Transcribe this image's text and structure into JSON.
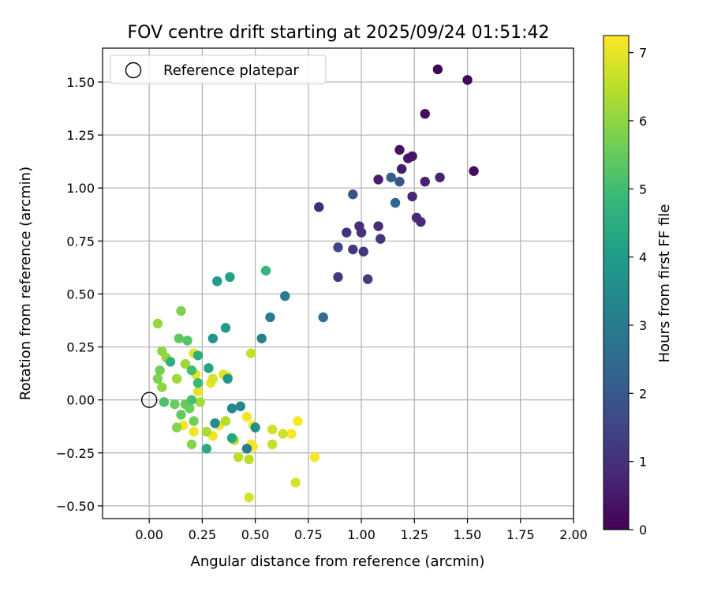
{
  "chart_data": {
    "type": "scatter",
    "title": "FOV centre drift starting at 2025/09/24 01:51:42",
    "xlabel": "Angular distance from reference (arcmin)",
    "ylabel": "Rotation from reference (arcmin)",
    "xlim": [
      -0.22,
      2.0
    ],
    "ylim": [
      -0.56,
      1.66
    ],
    "xticks": [
      0.0,
      0.25,
      0.5,
      0.75,
      1.0,
      1.25,
      1.5,
      1.75,
      2.0
    ],
    "xtick_labels": [
      "0.00",
      "0.25",
      "0.50",
      "0.75",
      "1.00",
      "1.25",
      "1.50",
      "1.75",
      "2.00"
    ],
    "yticks": [
      -0.5,
      -0.25,
      0.0,
      0.25,
      0.5,
      0.75,
      1.0,
      1.25,
      1.5
    ],
    "ytick_labels": [
      "−0.50",
      "−0.25",
      "0.00",
      "0.25",
      "0.50",
      "0.75",
      "1.00",
      "1.25",
      "1.50"
    ],
    "grid": true,
    "legend": {
      "position": "top-left",
      "entries": [
        {
          "label": "Reference platepar",
          "marker": "open-circle"
        }
      ]
    },
    "reference_point": {
      "x": 0.0,
      "y": 0.0
    },
    "colorbar": {
      "label": "Hours from first FF file",
      "colormap": "viridis",
      "range": [
        0,
        7.25
      ],
      "ticks": [
        0,
        1,
        2,
        3,
        4,
        5,
        6,
        7
      ],
      "tick_labels": [
        "0",
        "1",
        "2",
        "3",
        "4",
        "5",
        "6",
        "7"
      ]
    },
    "colormap_stops": [
      "#440154",
      "#482878",
      "#3e4989",
      "#31688e",
      "#26828e",
      "#1f9e89",
      "#35b779",
      "#6ece58",
      "#b5de2b",
      "#fde725"
    ],
    "points": [
      {
        "x": 1.36,
        "y": 1.56,
        "c": 0.05
      },
      {
        "x": 1.5,
        "y": 1.51,
        "c": 0.1
      },
      {
        "x": 1.53,
        "y": 1.08,
        "c": 0.15
      },
      {
        "x": 1.3,
        "y": 1.35,
        "c": 0.25
      },
      {
        "x": 1.18,
        "y": 1.18,
        "c": 0.35
      },
      {
        "x": 1.24,
        "y": 1.15,
        "c": 0.4
      },
      {
        "x": 1.22,
        "y": 1.14,
        "c": 0.45
      },
      {
        "x": 1.19,
        "y": 1.09,
        "c": 0.55
      },
      {
        "x": 1.08,
        "y": 1.04,
        "c": 0.6
      },
      {
        "x": 1.3,
        "y": 1.03,
        "c": 0.65
      },
      {
        "x": 1.37,
        "y": 1.05,
        "c": 0.7
      },
      {
        "x": 1.24,
        "y": 0.96,
        "c": 0.75
      },
      {
        "x": 1.26,
        "y": 0.86,
        "c": 0.8
      },
      {
        "x": 1.28,
        "y": 0.84,
        "c": 0.85
      },
      {
        "x": 0.8,
        "y": 0.91,
        "c": 0.85
      },
      {
        "x": 1.08,
        "y": 0.82,
        "c": 0.9
      },
      {
        "x": 0.99,
        "y": 0.82,
        "c": 0.95
      },
      {
        "x": 1.0,
        "y": 0.79,
        "c": 1.0
      },
      {
        "x": 0.93,
        "y": 0.79,
        "c": 1.05
      },
      {
        "x": 1.09,
        "y": 0.76,
        "c": 1.1
      },
      {
        "x": 0.96,
        "y": 0.71,
        "c": 1.15
      },
      {
        "x": 1.01,
        "y": 0.7,
        "c": 1.2
      },
      {
        "x": 0.89,
        "y": 0.58,
        "c": 1.25
      },
      {
        "x": 1.03,
        "y": 0.57,
        "c": 1.3
      },
      {
        "x": 0.89,
        "y": 0.72,
        "c": 1.55
      },
      {
        "x": 0.96,
        "y": 0.97,
        "c": 1.9
      },
      {
        "x": 1.18,
        "y": 1.03,
        "c": 2.0
      },
      {
        "x": 1.14,
        "y": 1.05,
        "c": 2.2
      },
      {
        "x": 1.16,
        "y": 0.93,
        "c": 2.4
      },
      {
        "x": 0.82,
        "y": 0.39,
        "c": 2.5
      },
      {
        "x": 0.64,
        "y": 0.49,
        "c": 3.0
      },
      {
        "x": 0.57,
        "y": 0.39,
        "c": 3.1
      },
      {
        "x": 0.53,
        "y": 0.29,
        "c": 3.2
      },
      {
        "x": 0.46,
        "y": -0.23,
        "c": 3.0
      },
      {
        "x": 0.43,
        "y": -0.03,
        "c": 3.3
      },
      {
        "x": 0.39,
        "y": -0.04,
        "c": 3.4
      },
      {
        "x": 0.31,
        "y": -0.11,
        "c": 3.5
      },
      {
        "x": 0.5,
        "y": -0.13,
        "c": 3.6
      },
      {
        "x": 0.37,
        "y": 0.1,
        "c": 3.7
      },
      {
        "x": 0.3,
        "y": 0.29,
        "c": 3.8
      },
      {
        "x": 0.36,
        "y": 0.34,
        "c": 3.9
      },
      {
        "x": 0.32,
        "y": 0.56,
        "c": 4.0
      },
      {
        "x": 0.38,
        "y": 0.58,
        "c": 4.1
      },
      {
        "x": 0.28,
        "y": 0.15,
        "c": 4.2
      },
      {
        "x": 0.39,
        "y": -0.18,
        "c": 4.3
      },
      {
        "x": 0.27,
        "y": -0.23,
        "c": 4.4
      },
      {
        "x": 0.23,
        "y": 0.21,
        "c": 4.5
      },
      {
        "x": 0.1,
        "y": 0.18,
        "c": 4.6
      },
      {
        "x": 0.55,
        "y": 0.61,
        "c": 4.8
      },
      {
        "x": 0.23,
        "y": 0.08,
        "c": 4.9
      },
      {
        "x": 0.2,
        "y": 0.14,
        "c": 5.0
      },
      {
        "x": 0.2,
        "y": 0.0,
        "c": 5.1
      },
      {
        "x": 0.07,
        "y": -0.01,
        "c": 5.2
      },
      {
        "x": 0.18,
        "y": 0.28,
        "c": 5.3
      },
      {
        "x": 0.14,
        "y": 0.29,
        "c": 5.4
      },
      {
        "x": 0.15,
        "y": -0.07,
        "c": 5.5
      },
      {
        "x": 0.17,
        "y": -0.02,
        "c": 5.5
      },
      {
        "x": 0.12,
        "y": -0.02,
        "c": 5.6
      },
      {
        "x": 0.19,
        "y": -0.04,
        "c": 5.6
      },
      {
        "x": 0.21,
        "y": -0.1,
        "c": 5.7
      },
      {
        "x": 0.05,
        "y": 0.14,
        "c": 5.7
      },
      {
        "x": 0.04,
        "y": 0.1,
        "c": 5.8
      },
      {
        "x": 0.15,
        "y": 0.42,
        "c": 5.8
      },
      {
        "x": 0.13,
        "y": -0.13,
        "c": 5.9
      },
      {
        "x": 0.2,
        "y": -0.21,
        "c": 5.9
      },
      {
        "x": 0.06,
        "y": 0.23,
        "c": 6.0
      },
      {
        "x": 0.06,
        "y": 0.06,
        "c": 6.0
      },
      {
        "x": 0.04,
        "y": 0.36,
        "c": 6.1
      },
      {
        "x": 0.08,
        "y": 0.2,
        "c": 6.1
      },
      {
        "x": 0.13,
        "y": 0.1,
        "c": 6.2
      },
      {
        "x": 0.17,
        "y": 0.17,
        "c": 6.2
      },
      {
        "x": 0.24,
        "y": -0.01,
        "c": 6.3
      },
      {
        "x": 0.27,
        "y": -0.15,
        "c": 6.3
      },
      {
        "x": 0.36,
        "y": -0.1,
        "c": 6.4
      },
      {
        "x": 0.4,
        "y": -0.19,
        "c": 6.4
      },
      {
        "x": 0.42,
        "y": -0.27,
        "c": 6.5
      },
      {
        "x": 0.47,
        "y": -0.28,
        "c": 6.5
      },
      {
        "x": 0.48,
        "y": 0.22,
        "c": 6.6
      },
      {
        "x": 0.58,
        "y": -0.21,
        "c": 6.6
      },
      {
        "x": 0.63,
        "y": -0.16,
        "c": 6.7
      },
      {
        "x": 0.58,
        "y": -0.14,
        "c": 6.7
      },
      {
        "x": 0.47,
        "y": -0.46,
        "c": 6.8
      },
      {
        "x": 0.69,
        "y": -0.39,
        "c": 6.8
      },
      {
        "x": 0.3,
        "y": 0.1,
        "c": 6.8
      },
      {
        "x": 0.35,
        "y": 0.12,
        "c": 6.9
      },
      {
        "x": 0.37,
        "y": 0.11,
        "c": 6.9
      },
      {
        "x": 0.22,
        "y": 0.12,
        "c": 7.0
      },
      {
        "x": 0.21,
        "y": 0.22,
        "c": 7.0
      },
      {
        "x": 0.29,
        "y": 0.08,
        "c": 7.0
      },
      {
        "x": 0.23,
        "y": 0.04,
        "c": 7.0
      },
      {
        "x": 0.16,
        "y": -0.12,
        "c": 7.1
      },
      {
        "x": 0.21,
        "y": -0.15,
        "c": 7.1
      },
      {
        "x": 0.3,
        "y": -0.17,
        "c": 7.1
      },
      {
        "x": 0.33,
        "y": -0.12,
        "c": 7.1
      },
      {
        "x": 0.46,
        "y": -0.08,
        "c": 7.1
      },
      {
        "x": 0.49,
        "y": -0.12,
        "c": 7.2
      },
      {
        "x": 0.48,
        "y": -0.21,
        "c": 7.2
      },
      {
        "x": 0.49,
        "y": -0.22,
        "c": 7.2
      },
      {
        "x": 0.67,
        "y": -0.16,
        "c": 7.2
      },
      {
        "x": 0.7,
        "y": -0.1,
        "c": 7.2
      },
      {
        "x": 0.78,
        "y": -0.27,
        "c": 7.2
      }
    ]
  }
}
